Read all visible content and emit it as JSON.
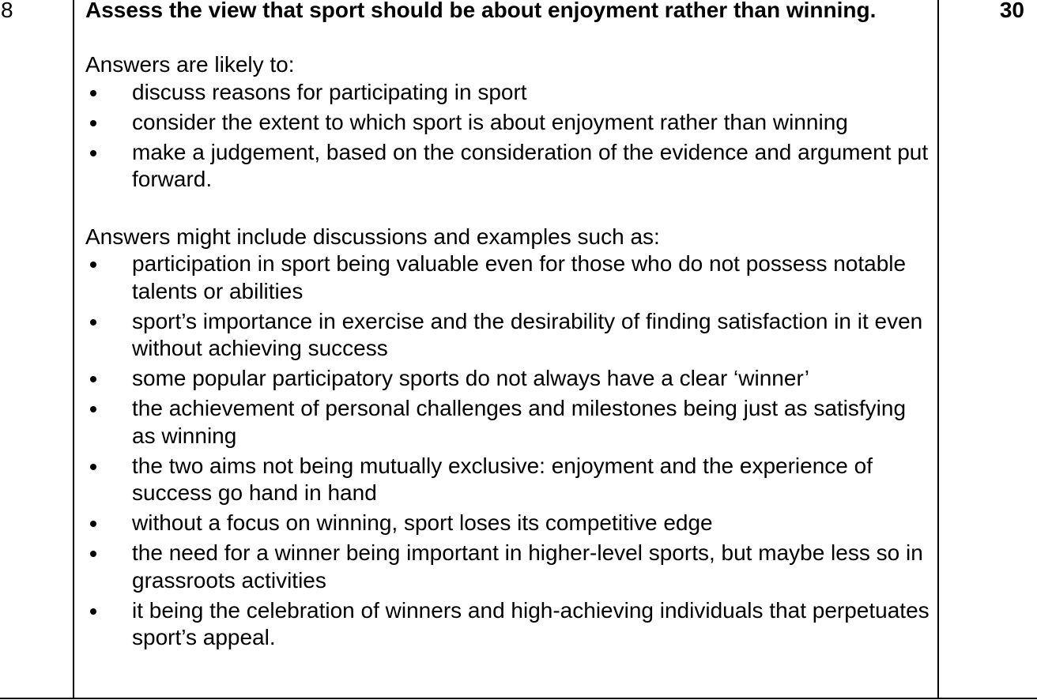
{
  "question": {
    "number": "8",
    "marks": "30",
    "title": "Assess the view that sport should be about enjoyment rather than winning."
  },
  "likely": {
    "intro": "Answers are likely to:",
    "items": [
      "discuss reasons for participating in sport",
      "consider the extent to which sport is about enjoyment rather than winning",
      "make a judgement, based on the consideration of the evidence and argument put forward."
    ]
  },
  "examples": {
    "intro": "Answers might include discussions and examples such as:",
    "items": [
      "participation in sport being valuable even for those who do not possess notable talents or abilities",
      "sport’s importance in exercise and the desirability of finding satisfaction in it even without achieving success",
      "some popular participatory sports do not always have a clear ‘winner’",
      "the achievement of personal challenges and milestones being just as satisfying as winning",
      "the two aims not being mutually exclusive: enjoyment and the experience of success go hand in hand",
      "without a focus on winning, sport loses its competitive edge",
      "the need for a winner being important in higher-level sports, but maybe less so in grassroots activities",
      "it being the celebration of winners and high-achieving individuals that perpetuates sport’s appeal."
    ]
  }
}
